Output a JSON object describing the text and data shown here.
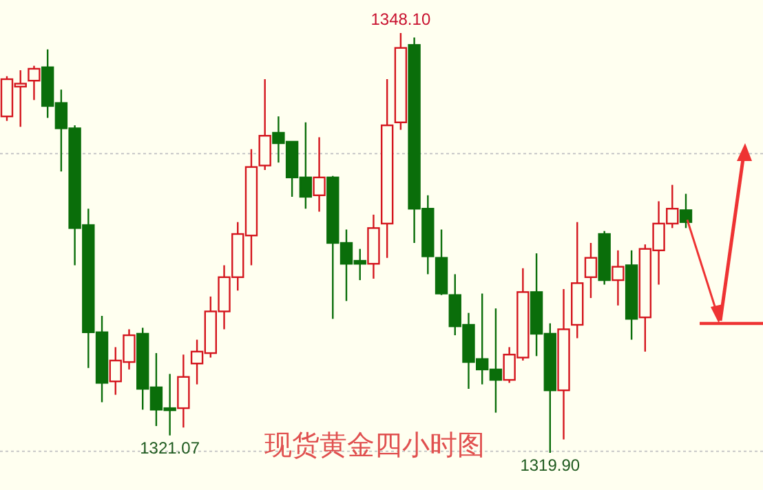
{
  "chart_data": {
    "type": "candlestick",
    "title": "现货黄金四小时图",
    "categories": [
      null,
      null,
      null,
      null,
      null,
      null,
      null,
      null,
      null,
      null,
      null,
      null,
      null,
      null,
      null,
      null,
      null,
      null,
      null,
      null,
      null,
      null,
      null,
      null,
      null,
      null,
      null,
      null,
      null,
      null,
      null,
      null,
      null,
      null,
      null,
      null,
      null,
      null,
      null,
      null,
      null,
      null,
      null,
      null,
      null,
      null,
      null,
      null,
      null,
      null,
      null
    ],
    "ohlc": [
      [
        1342.5,
        1345.2,
        1342.2,
        1345.0
      ],
      [
        1344.5,
        1345.6,
        1341.8,
        1344.7
      ],
      [
        1344.9,
        1345.9,
        1343.6,
        1345.7
      ],
      [
        1345.8,
        1347.0,
        1342.4,
        1343.2
      ],
      [
        1343.4,
        1344.3,
        1338.8,
        1341.7
      ],
      [
        1341.7,
        1341.9,
        1332.5,
        1335.0
      ],
      [
        1335.2,
        1336.3,
        1325.6,
        1328.0
      ],
      [
        1328.0,
        1329.1,
        1323.3,
        1324.6
      ],
      [
        1324.7,
        1327.0,
        1323.8,
        1326.1
      ],
      [
        1326.0,
        1328.2,
        1325.5,
        1327.8
      ],
      [
        1327.9,
        1328.3,
        1322.8,
        1324.2
      ],
      [
        1324.3,
        1326.6,
        1321.7,
        1322.8
      ],
      [
        1322.9,
        1325.2,
        1321.07,
        1322.8
      ],
      [
        1322.9,
        1326.5,
        1321.6,
        1325.0
      ],
      [
        1325.9,
        1327.5,
        1324.5,
        1326.7
      ],
      [
        1326.6,
        1330.4,
        1326.3,
        1329.4
      ],
      [
        1329.4,
        1332.5,
        1328.2,
        1331.7
      ],
      [
        1331.7,
        1335.4,
        1330.8,
        1334.6
      ],
      [
        1334.5,
        1340.3,
        1332.5,
        1339.1
      ],
      [
        1339.2,
        1345.0,
        1338.9,
        1341.2
      ],
      [
        1341.4,
        1342.5,
        1339.4,
        1340.7
      ],
      [
        1340.8,
        1340.8,
        1337.1,
        1338.4
      ],
      [
        1338.4,
        1342.1,
        1336.3,
        1337.1
      ],
      [
        1337.2,
        1341.1,
        1336.1,
        1338.4
      ],
      [
        1338.4,
        1338.5,
        1328.9,
        1334.0
      ],
      [
        1334.0,
        1334.9,
        1330.1,
        1332.6
      ],
      [
        1332.8,
        1333.6,
        1331.5,
        1332.6
      ],
      [
        1332.6,
        1335.9,
        1331.6,
        1335.0
      ],
      [
        1335.3,
        1345.0,
        1333.0,
        1341.9
      ],
      [
        1342.1,
        1348.1,
        1341.6,
        1347.1
      ],
      [
        1347.3,
        1347.8,
        1334.0,
        1336.3
      ],
      [
        1336.3,
        1337.2,
        1331.9,
        1333.1
      ],
      [
        1333.0,
        1334.9,
        1330.5,
        1330.6
      ],
      [
        1330.5,
        1331.9,
        1327.8,
        1328.4
      ],
      [
        1328.5,
        1329.3,
        1324.2,
        1326.0
      ],
      [
        1326.2,
        1330.6,
        1324.5,
        1325.5
      ],
      [
        1325.5,
        1329.6,
        1322.6,
        1324.8
      ],
      [
        1324.8,
        1327.0,
        1324.6,
        1326.5
      ],
      [
        1326.3,
        1332.3,
        1326.1,
        1330.7
      ],
      [
        1330.7,
        1333.3,
        1326.4,
        1327.9
      ],
      [
        1327.9,
        1328.6,
        1319.9,
        1324.1
      ],
      [
        1324.1,
        1330.9,
        1320.8,
        1328.2
      ],
      [
        1328.5,
        1335.4,
        1327.6,
        1331.3
      ],
      [
        1331.7,
        1334.0,
        1330.3,
        1333.0
      ],
      [
        1334.6,
        1334.8,
        1331.2,
        1331.5
      ],
      [
        1331.5,
        1333.5,
        1329.8,
        1332.4
      ],
      [
        1332.5,
        1333.5,
        1327.5,
        1328.9
      ],
      [
        1329.0,
        1333.9,
        1326.7,
        1333.6
      ],
      [
        1333.5,
        1336.8,
        1331.2,
        1335.3
      ],
      [
        1335.3,
        1337.9,
        1335.0,
        1336.3
      ],
      [
        1336.2,
        1337.3,
        1335.0,
        1335.4
      ]
    ],
    "annotations": [
      {
        "text": "1348.10",
        "y": 1348.1
      },
      {
        "text": "1321.07",
        "y": 1321.07
      },
      {
        "text": "1319.90",
        "y": 1319.9
      }
    ],
    "ref_lines": [
      {
        "axis": "y",
        "value": 1340,
        "color": "#c8c8c8",
        "line_style": "dotted"
      },
      {
        "axis": "y",
        "value": 1320,
        "color": "#c8c8c8",
        "line_style": "dotted"
      }
    ]
  }
}
